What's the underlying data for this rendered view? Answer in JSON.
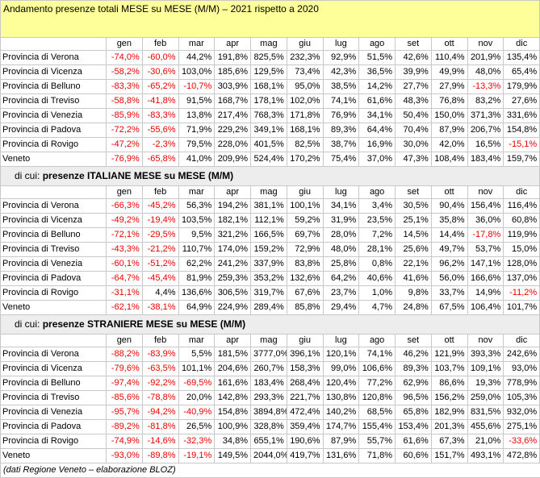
{
  "title": "Andamento presenze totali MESE su MESE (M/M) – 2021 rispetto a 2020",
  "months": [
    "gen",
    "feb",
    "mar",
    "apr",
    "mag",
    "giu",
    "lug",
    "ago",
    "set",
    "ott",
    "nov",
    "dic"
  ],
  "sections": [
    {
      "prefix": "",
      "heading": "",
      "rows": [
        {
          "label": "Provincia di Verona",
          "values": [
            "-74,0%",
            "-60,0%",
            "44,2%",
            "191,8%",
            "825,5%",
            "232,3%",
            "92,9%",
            "51,5%",
            "42,6%",
            "110,4%",
            "201,9%",
            "135,4%"
          ]
        },
        {
          "label": "Provincia di Vicenza",
          "values": [
            "-58,2%",
            "-30,6%",
            "103,0%",
            "185,6%",
            "129,5%",
            "73,4%",
            "42,3%",
            "36,5%",
            "39,9%",
            "49,9%",
            "48,0%",
            "65,4%"
          ]
        },
        {
          "label": "Provincia di Belluno",
          "values": [
            "-83,3%",
            "-65,2%",
            "-10,7%",
            "303,9%",
            "168,1%",
            "95,0%",
            "38,5%",
            "14,2%",
            "27,7%",
            "27,9%",
            "-13,3%",
            "179,9%"
          ]
        },
        {
          "label": "Provincia di Treviso",
          "values": [
            "-58,8%",
            "-41,8%",
            "91,5%",
            "168,7%",
            "178,1%",
            "102,0%",
            "74,1%",
            "61,6%",
            "48,3%",
            "76,8%",
            "83,2%",
            "27,6%"
          ]
        },
        {
          "label": "Provincia di Venezia",
          "values": [
            "-85,9%",
            "-83,3%",
            "13,8%",
            "217,4%",
            "768,3%",
            "171,8%",
            "76,9%",
            "34,1%",
            "50,4%",
            "150,0%",
            "371,3%",
            "331,6%"
          ]
        },
        {
          "label": "Provincia di Padova",
          "values": [
            "-72,2%",
            "-55,6%",
            "71,9%",
            "229,2%",
            "349,1%",
            "168,1%",
            "89,3%",
            "64,4%",
            "70,4%",
            "87,9%",
            "206,7%",
            "154,8%"
          ]
        },
        {
          "label": "Provincia di Rovigo",
          "values": [
            "-47,2%",
            "-2,3%",
            "79,5%",
            "228,0%",
            "401,5%",
            "82,5%",
            "38,7%",
            "16,9%",
            "30,0%",
            "42,0%",
            "16,5%",
            "-15,1%"
          ]
        },
        {
          "label": "Veneto",
          "values": [
            "-76,9%",
            "-65,8%",
            "41,0%",
            "209,9%",
            "524,4%",
            "170,2%",
            "75,4%",
            "37,0%",
            "47,3%",
            "108,4%",
            "183,4%",
            "159,7%"
          ]
        }
      ]
    },
    {
      "prefix": "di cui: ",
      "heading": "presenze ITALIANE MESE su MESE (M/M)",
      "rows": [
        {
          "label": "Provincia di Verona",
          "values": [
            "-66,3%",
            "-45,2%",
            "56,3%",
            "194,2%",
            "381,1%",
            "100,1%",
            "34,1%",
            "3,4%",
            "30,5%",
            "90,4%",
            "156,4%",
            "116,4%"
          ]
        },
        {
          "label": "Provincia di Vicenza",
          "values": [
            "-49,2%",
            "-19,4%",
            "103,5%",
            "182,1%",
            "112,1%",
            "59,2%",
            "31,9%",
            "23,5%",
            "25,1%",
            "35,8%",
            "36,0%",
            "60,8%"
          ]
        },
        {
          "label": "Provincia di Belluno",
          "values": [
            "-72,1%",
            "-29,5%",
            "9,5%",
            "321,2%",
            "166,5%",
            "69,7%",
            "28,0%",
            "7,2%",
            "14,5%",
            "14,4%",
            "-17,8%",
            "119,9%"
          ]
        },
        {
          "label": "Provincia di Treviso",
          "values": [
            "-43,3%",
            "-21,2%",
            "110,7%",
            "174,0%",
            "159,2%",
            "72,9%",
            "48,0%",
            "28,1%",
            "25,6%",
            "49,7%",
            "53,7%",
            "15,0%"
          ]
        },
        {
          "label": "Provincia di Venezia",
          "values": [
            "-60,1%",
            "-51,2%",
            "62,2%",
            "241,2%",
            "337,9%",
            "83,8%",
            "25,8%",
            "0,8%",
            "22,1%",
            "96,2%",
            "147,1%",
            "128,0%"
          ]
        },
        {
          "label": "Provincia di Padova",
          "values": [
            "-64,7%",
            "-45,4%",
            "81,9%",
            "259,3%",
            "353,2%",
            "132,6%",
            "64,2%",
            "40,6%",
            "41,6%",
            "56,0%",
            "166,6%",
            "137,0%"
          ]
        },
        {
          "label": "Provincia di Rovigo",
          "values": [
            "-31,1%",
            "4,4%",
            "136,6%",
            "306,5%",
            "319,7%",
            "67,6%",
            "23,7%",
            "1,0%",
            "9,8%",
            "33,7%",
            "14,9%",
            "-11,2%"
          ]
        },
        {
          "label": "Veneto",
          "values": [
            "-62,1%",
            "-38,1%",
            "64,9%",
            "224,9%",
            "289,4%",
            "85,8%",
            "29,4%",
            "4,7%",
            "24,8%",
            "67,5%",
            "106,4%",
            "101,7%"
          ]
        }
      ]
    },
    {
      "prefix": "di cui: ",
      "heading": "presenze STRANIERE MESE su MESE (M/M)",
      "rows": [
        {
          "label": "Provincia di Verona",
          "values": [
            "-88,2%",
            "-83,9%",
            "5,5%",
            "181,5%",
            "3777,0%",
            "396,1%",
            "120,1%",
            "74,1%",
            "46,2%",
            "121,9%",
            "393,3%",
            "242,6%"
          ]
        },
        {
          "label": "Provincia di Vicenza",
          "values": [
            "-79,6%",
            "-63,5%",
            "101,1%",
            "204,6%",
            "260,7%",
            "158,3%",
            "99,0%",
            "106,6%",
            "89,3%",
            "103,7%",
            "109,1%",
            "93,0%"
          ]
        },
        {
          "label": "Provincia di Belluno",
          "values": [
            "-97,4%",
            "-92,2%",
            "-69,5%",
            "161,6%",
            "183,4%",
            "268,4%",
            "120,4%",
            "77,2%",
            "62,9%",
            "86,6%",
            "19,3%",
            "778,9%"
          ]
        },
        {
          "label": "Provincia di Treviso",
          "values": [
            "-85,6%",
            "-78,8%",
            "20,0%",
            "142,8%",
            "293,3%",
            "221,7%",
            "130,8%",
            "120,8%",
            "96,5%",
            "156,2%",
            "259,0%",
            "105,3%"
          ]
        },
        {
          "label": "Provincia di Venezia",
          "values": [
            "-95,7%",
            "-94,2%",
            "-40,9%",
            "154,8%",
            "3894,8%",
            "472,4%",
            "140,2%",
            "68,5%",
            "65,8%",
            "182,9%",
            "831,5%",
            "932,0%"
          ]
        },
        {
          "label": "Provincia di Padova",
          "values": [
            "-89,2%",
            "-81,8%",
            "26,5%",
            "100,9%",
            "328,8%",
            "359,4%",
            "174,7%",
            "155,4%",
            "153,4%",
            "201,3%",
            "455,6%",
            "275,1%"
          ]
        },
        {
          "label": "Provincia di Rovigo",
          "values": [
            "-74,9%",
            "-14,6%",
            "-32,3%",
            "34,8%",
            "655,1%",
            "190,6%",
            "87,9%",
            "55,7%",
            "61,6%",
            "67,3%",
            "21,0%",
            "-33,6%"
          ]
        },
        {
          "label": "Veneto",
          "values": [
            "-93,0%",
            "-89,8%",
            "-19,1%",
            "149,5%",
            "2044,0%",
            "419,7%",
            "131,6%",
            "71,8%",
            "60,6%",
            "151,7%",
            "493,1%",
            "472,8%"
          ]
        }
      ]
    }
  ],
  "footer": "(dati Regione Veneto – elaborazione BLOZ)",
  "colors": {
    "negative": "#ee0000",
    "title_bg": "#ffff99",
    "subheader_bg": "#ededed",
    "grid": "#c8c8c8"
  }
}
